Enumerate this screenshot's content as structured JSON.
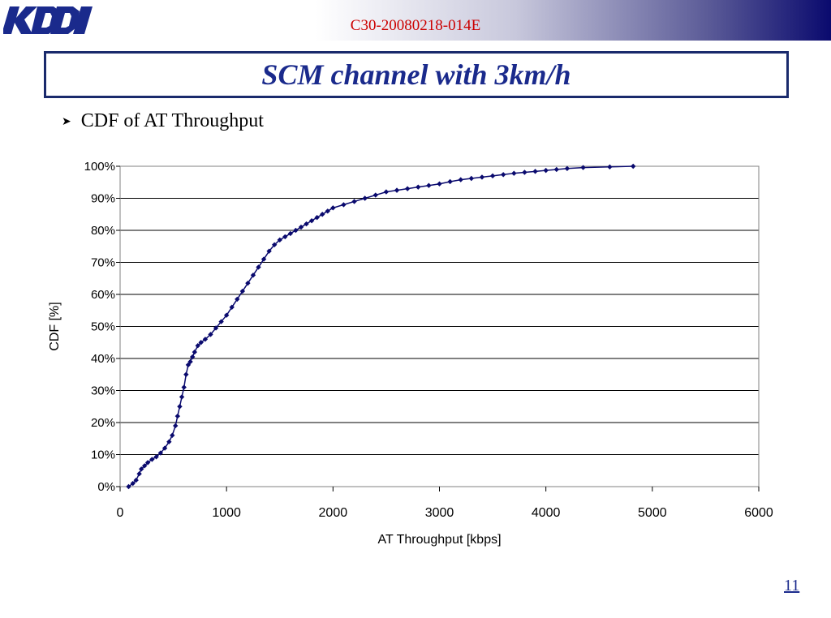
{
  "header": {
    "logo_text": "KDDI",
    "doc_id": "C30-20080218-014E",
    "brand_color": "#0a0a6e",
    "doc_id_color": "#cc0000"
  },
  "slide": {
    "title": "SCM channel with 3km/h",
    "bullet": "CDF of AT Throughput",
    "page_number": "11"
  },
  "chart_data": {
    "type": "line",
    "title": "",
    "xlabel": "AT Throughput [kbps]",
    "ylabel": "CDF [%]",
    "xlim": [
      0,
      6000
    ],
    "ylim": [
      0,
      100
    ],
    "x_ticks": [
      "0",
      "1000",
      "2000",
      "3000",
      "4000",
      "5000",
      "6000"
    ],
    "y_ticks": [
      "0%",
      "10%",
      "20%",
      "30%",
      "40%",
      "50%",
      "60%",
      "70%",
      "80%",
      "90%",
      "100%"
    ],
    "grid": "horizontal",
    "legend": "none",
    "series_color": "#0a0a6e",
    "series": [
      {
        "marker": "diamond",
        "x": [
          80,
          120,
          150,
          180,
          200,
          230,
          260,
          300,
          340,
          380,
          420,
          460,
          490,
          520,
          540,
          560,
          580,
          600,
          620,
          640,
          660,
          680,
          700,
          730,
          760,
          800,
          850,
          900,
          950,
          1000,
          1050,
          1100,
          1150,
          1200,
          1250,
          1300,
          1350,
          1400,
          1450,
          1500,
          1550,
          1600,
          1650,
          1700,
          1750,
          1800,
          1850,
          1900,
          1950,
          2000,
          2100,
          2200,
          2300,
          2400,
          2500,
          2600,
          2700,
          2800,
          2900,
          3000,
          3100,
          3200,
          3300,
          3400,
          3500,
          3600,
          3700,
          3800,
          3900,
          4000,
          4100,
          4200,
          4350,
          4600,
          4820
        ],
        "y": [
          0,
          1,
          2,
          4,
          5.5,
          6.5,
          7.5,
          8.5,
          9.3,
          10.5,
          12,
          14,
          16,
          19,
          22,
          25,
          28,
          31,
          35,
          38,
          39,
          40.5,
          42,
          44,
          45,
          46,
          47.5,
          49.5,
          51.5,
          53.5,
          56,
          58.5,
          61,
          63.5,
          66,
          68.5,
          71,
          73.5,
          75.5,
          77,
          78,
          79,
          80,
          81,
          82,
          83,
          84,
          85,
          86,
          87,
          88,
          89,
          90,
          91,
          92,
          92.5,
          93,
          93.5,
          94,
          94.5,
          95.2,
          95.8,
          96.2,
          96.6,
          97,
          97.4,
          97.8,
          98.1,
          98.4,
          98.7,
          99,
          99.3,
          99.6,
          99.8,
          100
        ]
      }
    ]
  }
}
